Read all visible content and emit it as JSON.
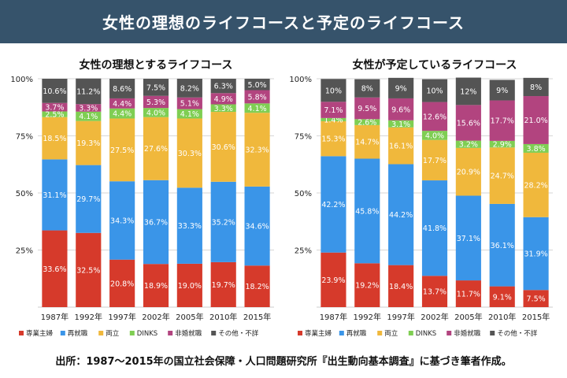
{
  "header": {
    "title": "女性の理想のライフコースと予定のライフコース"
  },
  "footer": {
    "source": "出所：1987〜2015年の国立社会保障・人口問題研究所『出生動向基本調査』に基づき筆者作成。"
  },
  "chart_data": [
    {
      "type": "bar",
      "stacked": "percent",
      "title": "女性の理想とするライフコース",
      "categories": [
        "1987年",
        "1992年",
        "1997年",
        "2002年",
        "2005年",
        "2010年",
        "2015年"
      ],
      "yticks": [
        "25%",
        "50%",
        "75%",
        "100%"
      ],
      "ylim": [
        0,
        100
      ],
      "grid": true,
      "legend_position": "bottom",
      "series": [
        {
          "name": "専業主婦",
          "color": "#d63a2b",
          "values": [
            33.6,
            32.5,
            20.8,
            18.9,
            19.0,
            19.7,
            18.2
          ],
          "labels": [
            "33.6%",
            "32.5%",
            "20.8%",
            "18.9%",
            "19.0%",
            "19.7%",
            "18.2%"
          ]
        },
        {
          "name": "再就職",
          "color": "#3a95e8",
          "values": [
            31.1,
            29.7,
            34.3,
            36.7,
            33.3,
            35.2,
            34.6
          ],
          "labels": [
            "31.1%",
            "29.7%",
            "34.3%",
            "36.7%",
            "33.3%",
            "35.2%",
            "34.6%"
          ]
        },
        {
          "name": "両立",
          "color": "#f0b83c",
          "values": [
            18.5,
            19.3,
            27.5,
            27.6,
            30.3,
            30.6,
            32.3
          ],
          "labels": [
            "18.5%",
            "19.3%",
            "27.5%",
            "27.6%",
            "30.3%",
            "30.6%",
            "32.3%"
          ]
        },
        {
          "name": "DINKS",
          "color": "#7fce53",
          "values": [
            2.5,
            4.1,
            4.4,
            4.0,
            4.1,
            3.3,
            4.1
          ],
          "labels": [
            "2.5%",
            "4.1%",
            "4.4%",
            "4.0%",
            "4.1%",
            "3.3%",
            "4.1%"
          ]
        },
        {
          "name": "非婚就職",
          "color": "#b2447f",
          "values": [
            3.7,
            3.3,
            4.4,
            5.3,
            5.1,
            4.9,
            5.8
          ],
          "labels": [
            "3.7%",
            "3.3%",
            "4.4%",
            "5.3%",
            "5.1%",
            "4.9%",
            "5.8%"
          ]
        },
        {
          "name": "その他・不詳",
          "color": "#545454",
          "values": [
            10.6,
            11.2,
            8.6,
            7.5,
            8.2,
            6.3,
            5.0
          ],
          "labels": [
            "10.6%",
            "11.2%",
            "8.6%",
            "7.5%",
            "8.2%",
            "6.3%",
            "5.0%"
          ]
        }
      ]
    },
    {
      "type": "bar",
      "stacked": "percent",
      "title": "女性が予定しているライフコース",
      "categories": [
        "1987年",
        "1992年",
        "1997年",
        "2002年",
        "2005年",
        "2010年",
        "2015年"
      ],
      "yticks": [
        "25%",
        "50%",
        "75%",
        "100%"
      ],
      "ylim": [
        0,
        100
      ],
      "grid": true,
      "legend_position": "bottom",
      "series": [
        {
          "name": "専業主婦",
          "color": "#d63a2b",
          "values": [
            23.9,
            19.2,
            18.4,
            13.7,
            11.7,
            9.1,
            7.5
          ],
          "labels": [
            "23.9%",
            "19.2%",
            "18.4%",
            "13.7%",
            "11.7%",
            "9.1%",
            "7.5%"
          ]
        },
        {
          "name": "再就職",
          "color": "#3a95e8",
          "values": [
            42.2,
            45.8,
            44.2,
            41.8,
            37.1,
            36.1,
            31.9
          ],
          "labels": [
            "42.2%",
            "45.8%",
            "44.2%",
            "41.8%",
            "37.1%",
            "36.1%",
            "31.9%"
          ]
        },
        {
          "name": "両立",
          "color": "#f0b83c",
          "values": [
            15.3,
            14.7,
            16.1,
            17.7,
            20.9,
            24.7,
            28.2
          ],
          "labels": [
            "15.3%",
            "14.7%",
            "16.1%",
            "17.7%",
            "20.9%",
            "24.7%",
            "28.2%"
          ]
        },
        {
          "name": "DINKS",
          "color": "#7fce53",
          "values": [
            1.4,
            2.6,
            3.1,
            4.0,
            3.2,
            2.9,
            3.8
          ],
          "labels": [
            "1.4%",
            "2.6%",
            "3.1%",
            "4.0%",
            "3.2%",
            "2.9%",
            "3.8%"
          ]
        },
        {
          "name": "非婚就職",
          "color": "#b2447f",
          "values": [
            7.1,
            9.5,
            9.6,
            12.6,
            15.6,
            17.7,
            21.0
          ],
          "labels": [
            "7.1%",
            "9.5%",
            "9.6%",
            "12.6%",
            "15.6%",
            "17.7%",
            "21.0%"
          ]
        },
        {
          "name": "その他・不詳",
          "color": "#545454",
          "values": [
            10,
            8,
            9,
            10,
            12,
            9,
            8
          ],
          "labels": [
            "10%",
            "8%",
            "9%",
            "10%",
            "12%",
            "9%",
            "8%"
          ]
        }
      ]
    }
  ]
}
